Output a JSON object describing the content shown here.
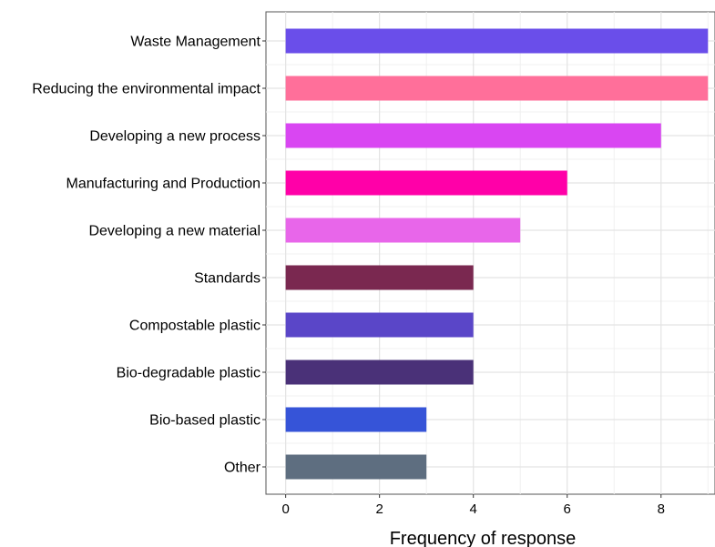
{
  "chart_data": {
    "type": "bar",
    "orientation": "horizontal",
    "categories": [
      "Waste Management",
      "Reducing the environmental impact",
      "Developing a new process",
      "Manufacturing and Production",
      "Developing a new material",
      "Standards",
      "Compostable plastic",
      "Bio-degradable plastic",
      "Bio-based plastic",
      "Other"
    ],
    "values": [
      9,
      9,
      8,
      6,
      5,
      4,
      4,
      4,
      3,
      3
    ],
    "colors": [
      "#6a4eea",
      "#ff6f9a",
      "#d946f2",
      "#ff00a8",
      "#e866ea",
      "#7a2850",
      "#5a46c8",
      "#4a3178",
      "#3654d8",
      "#5e6e80"
    ],
    "title": "",
    "xlabel": "Frequency of response",
    "ylabel": "",
    "xlim": [
      -0.42,
      9.15
    ],
    "xticks": [
      0,
      2,
      4,
      6,
      8
    ],
    "xtick_labels": [
      "0",
      "2",
      "4",
      "6",
      "8"
    ],
    "grid": true,
    "legend": "none"
  }
}
